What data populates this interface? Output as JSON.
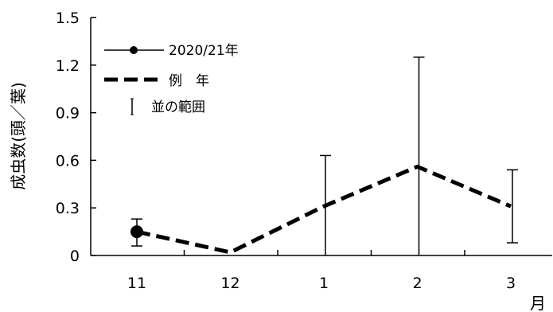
{
  "chart_data": {
    "type": "line",
    "categories": [
      "11",
      "12",
      "1",
      "2",
      "3"
    ],
    "xlabel": "月",
    "ylabel": "成虫数(頭／葉)",
    "ylim": [
      0,
      1.5
    ],
    "yticks": [
      "0",
      "0.3",
      "0.6",
      "0.9",
      "1.2",
      "1.5"
    ],
    "grid": false,
    "legend_position": "top-left",
    "series": [
      {
        "name": "2020/21年",
        "style": "solid-marker",
        "color": "#000000",
        "values": [
          0.15,
          null,
          null,
          null,
          null
        ]
      },
      {
        "name": "例　年",
        "style": "dashed",
        "color": "#000000",
        "values": [
          0.15,
          0.02,
          0.31,
          0.56,
          0.31
        ]
      }
    ],
    "range": {
      "name": "並の範囲",
      "low": [
        0.06,
        null,
        0.0,
        0.0,
        0.08
      ],
      "high": [
        0.23,
        null,
        0.63,
        1.25,
        0.54
      ]
    }
  }
}
